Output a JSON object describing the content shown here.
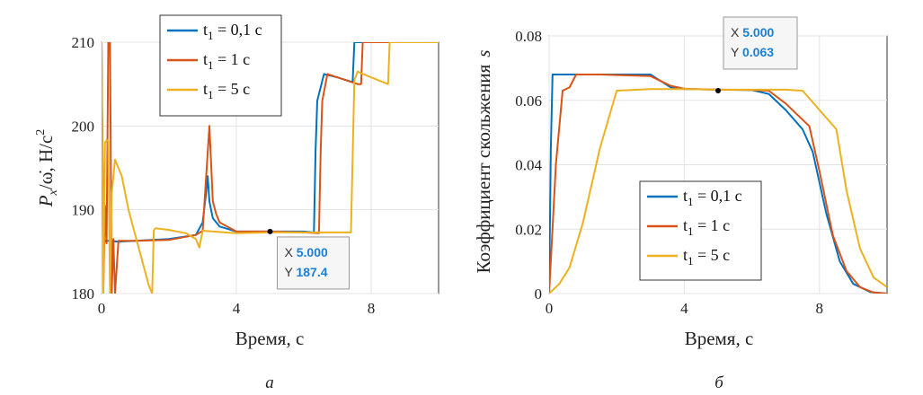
{
  "chart_data": [
    {
      "type": "line",
      "caption": "а",
      "xlabel": "Время, с",
      "ylabel_main": "P",
      "ylabel_sub": "x",
      "ylabel_rest": "/ω̇,   Н/с",
      "ylabel_sup": "2",
      "xlim": [
        0,
        10
      ],
      "ylim": [
        180,
        210
      ],
      "xticks": [
        "0",
        "4",
        "8"
      ],
      "yticks": [
        "180",
        "190",
        "200",
        "210"
      ],
      "xtick_values": [
        0,
        4,
        8
      ],
      "ytick_values": [
        180,
        190,
        200,
        210
      ],
      "legend": {
        "position": "top-center"
      },
      "series": [
        {
          "name": "t",
          "sub": "1",
          "rest": " = 0,1 с",
          "color": "#0072bd",
          "x": [
            0,
            0.05,
            0.1,
            0.2,
            0.5,
            1.0,
            2.0,
            2.8,
            3.0,
            3.1,
            3.15,
            3.2,
            3.3,
            3.5,
            4.0,
            5.0,
            6.0,
            6.3,
            6.35,
            6.4,
            6.6,
            7.0,
            7.4,
            7.45,
            7.5,
            7.6,
            10
          ],
          "y": [
            210,
            187,
            186.2,
            186.3,
            186.2,
            186.3,
            186.5,
            187.0,
            188.5,
            192,
            194,
            191,
            189,
            188,
            187.4,
            187.4,
            187.4,
            187.3,
            197,
            203,
            206.2,
            205.8,
            205.3,
            205.3,
            210,
            210,
            210
          ]
        },
        {
          "name": "t",
          "sub": "1",
          "rest": " = 1 с",
          "color": "#d95319",
          "x": [
            0,
            0.05,
            0.1,
            0.15,
            0.2,
            0.25,
            0.3,
            0.35,
            0.4,
            0.5,
            0.6,
            0.8,
            1.0,
            2.0,
            2.8,
            3.0,
            3.2,
            3.3,
            3.4,
            3.5,
            4.0,
            5.0,
            6.0,
            6.45,
            6.5,
            6.55,
            6.7,
            7.0,
            7.6,
            7.7,
            7.75,
            10
          ],
          "y": [
            210,
            180,
            190.5,
            186,
            210,
            210,
            180,
            186.5,
            180,
            186.3,
            186.3,
            186.3,
            186.3,
            186.4,
            187.0,
            187.5,
            200,
            191,
            189.5,
            188.5,
            187.4,
            187.4,
            187.3,
            187.2,
            197,
            203,
            206.2,
            205.8,
            205.0,
            205.0,
            210,
            210
          ]
        },
        {
          "name": "t",
          "sub": "1",
          "rest": " = 5 с",
          "color": "#edb120",
          "x": [
            0,
            0.05,
            0.1,
            0.15,
            0.2,
            0.25,
            0.3,
            0.4,
            0.6,
            0.8,
            1.0,
            1.2,
            1.4,
            1.5,
            1.55,
            1.6,
            2.0,
            2.5,
            2.8,
            2.9,
            3.0,
            4.0,
            5.0,
            6.0,
            7.3,
            7.4,
            7.5,
            7.6,
            7.7,
            8.0,
            8.5,
            8.55,
            8.6,
            10
          ],
          "y": [
            210,
            180,
            198,
            198.3,
            198.2,
            180,
            192,
            196,
            194,
            190,
            187,
            184,
            181,
            180,
            187.5,
            187.8,
            187.6,
            187.2,
            186.5,
            185.5,
            187.5,
            187.2,
            187.3,
            187.3,
            187.3,
            187.3,
            205.5,
            206.5,
            206.3,
            205.8,
            205.0,
            210,
            210,
            210
          ]
        }
      ],
      "datatip": {
        "x_label": "X",
        "x_value": "5.000",
        "y_label": "Y",
        "y_value": "187.4",
        "x": 5.0,
        "y": 187.4
      }
    },
    {
      "type": "line",
      "caption": "б",
      "xlabel": "Время, с",
      "ylabel_main": "Коэффициент скольжения",
      "ylabel_var": "s",
      "xlim": [
        0,
        10
      ],
      "ylim": [
        0,
        0.08
      ],
      "xticks": [
        "0",
        "4",
        "8"
      ],
      "yticks": [
        "0",
        "0.02",
        "0.04",
        "0.06",
        "0.08"
      ],
      "xtick_values": [
        0,
        4,
        8
      ],
      "ytick_values": [
        0,
        0.02,
        0.04,
        0.06,
        0.08
      ],
      "legend": {
        "position": "bottom-right"
      },
      "series": [
        {
          "name": "t",
          "sub": "1",
          "rest": " = 0,1 с",
          "color": "#0072bd",
          "x": [
            0,
            0.05,
            0.1,
            0.2,
            1.0,
            2.0,
            3.0,
            3.3,
            3.6,
            4.0,
            5.0,
            6.0,
            6.5,
            7.0,
            7.5,
            7.8,
            8.2,
            8.6,
            9.0,
            9.5,
            10
          ],
          "y": [
            0,
            0.045,
            0.068,
            0.068,
            0.068,
            0.068,
            0.068,
            0.066,
            0.064,
            0.0635,
            0.0633,
            0.0632,
            0.062,
            0.057,
            0.051,
            0.044,
            0.025,
            0.01,
            0.003,
            0.0005,
            0
          ]
        },
        {
          "name": "t",
          "sub": "1",
          "rest": " = 1 с",
          "color": "#d95319",
          "x": [
            0,
            0.2,
            0.4,
            0.6,
            0.8,
            1.5,
            3.0,
            3.3,
            3.6,
            4.0,
            5.0,
            6.0,
            6.5,
            7.0,
            7.5,
            7.7,
            8.0,
            8.4,
            8.8,
            9.2,
            9.6,
            10
          ],
          "y": [
            0,
            0.04,
            0.063,
            0.064,
            0.068,
            0.068,
            0.0675,
            0.066,
            0.0645,
            0.0636,
            0.0633,
            0.0632,
            0.063,
            0.059,
            0.054,
            0.052,
            0.038,
            0.018,
            0.007,
            0.002,
            0.0003,
            0
          ]
        },
        {
          "name": "t",
          "sub": "1",
          "rest": " = 5 с",
          "color": "#edb120",
          "x": [
            0,
            0.3,
            0.6,
            1.0,
            1.5,
            2.0,
            3.0,
            4.0,
            5.0,
            6.0,
            7.0,
            7.5,
            8.0,
            8.5,
            8.8,
            9.2,
            9.6,
            10
          ],
          "y": [
            0,
            0.003,
            0.008,
            0.022,
            0.045,
            0.063,
            0.0635,
            0.0635,
            0.0633,
            0.0633,
            0.0633,
            0.063,
            0.057,
            0.051,
            0.032,
            0.014,
            0.005,
            0.002
          ]
        }
      ],
      "datatip": {
        "x_label": "X",
        "x_value": "5.000",
        "y_label": "Y",
        "y_value": "0.063",
        "x": 5.0,
        "y": 0.063
      }
    }
  ]
}
